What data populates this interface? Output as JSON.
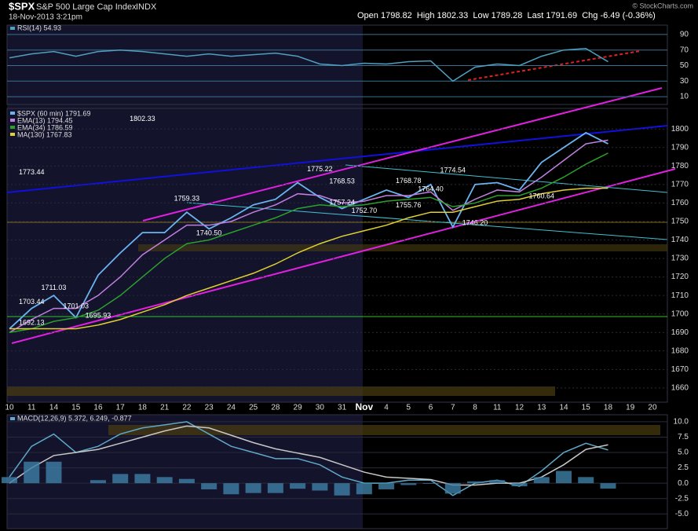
{
  "header": {
    "symbol": "$SPX",
    "name": "S&P 500 Large Cap Index",
    "exchange": "INDX",
    "date": "18-Nov-2013 3:21pm",
    "quote": "Open 1798.82  High 1802.33  Low 1789.28  Last 1791.69  Chg -6.49 (-0.36%)",
    "credit": "© StockCharts.com"
  },
  "chart_data": [
    {
      "type": "line",
      "series": [
        {
          "name": "RSI(14) 54.93",
          "color": "#4f9fc0",
          "values": [
            60,
            65,
            68,
            62,
            68,
            70,
            68,
            65,
            62,
            65,
            62,
            64,
            66,
            62,
            52,
            50,
            53,
            52,
            55,
            56,
            30,
            48,
            52,
            50,
            62,
            70,
            72,
            55,
            null,
            null
          ]
        }
      ],
      "ylim": [
        0,
        100
      ],
      "yticks": [
        10,
        30,
        50,
        70,
        90
      ]
    },
    {
      "type": "line",
      "categories": [
        "10",
        "11",
        "14",
        "15",
        "16",
        "17",
        "18",
        "21",
        "22",
        "23",
        "24",
        "25",
        "28",
        "29",
        "30",
        "31",
        "Nov",
        "4",
        "5",
        "6",
        "7",
        "8",
        "11",
        "12",
        "13",
        "14",
        "15",
        "18",
        "19",
        "20"
      ],
      "series": [
        {
          "name": "$SPX (60 min) 1791.69",
          "color": "#6ab4f0",
          "values": [
            1692,
            1703,
            1710,
            1698,
            1721,
            1733,
            1744,
            1744,
            1755,
            1746,
            1752,
            1759,
            1762,
            1771,
            1763,
            1757,
            1762,
            1767,
            1763,
            1770,
            1747,
            1770,
            1771,
            1767,
            1782,
            1790,
            1798,
            1792,
            null,
            null
          ]
        },
        {
          "name": "EMA(13) 1794.45",
          "color": "#c080e0",
          "values": [
            1690,
            1697,
            1703,
            1703,
            1710,
            1720,
            1732,
            1740,
            1748,
            1748,
            1750,
            1755,
            1759,
            1765,
            1764,
            1760,
            1761,
            1764,
            1764,
            1766,
            1756,
            1762,
            1767,
            1766,
            1774,
            1783,
            1792,
            1794,
            null,
            null
          ]
        },
        {
          "name": "EMA(34) 1786.59",
          "color": "#2ca02c",
          "values": [
            1690,
            1692,
            1696,
            1698,
            1702,
            1710,
            1720,
            1730,
            1738,
            1740,
            1744,
            1748,
            1752,
            1757,
            1759,
            1758,
            1759,
            1761,
            1762,
            1763,
            1758,
            1760,
            1764,
            1764,
            1768,
            1774,
            1781,
            1787,
            null,
            null
          ]
        },
        {
          "name": "MA(130) 1767.83",
          "color": "#e0d030",
          "values": [
            1692,
            1692,
            1692,
            1692,
            1694,
            1697,
            1701,
            1705,
            1710,
            1714,
            1718,
            1722,
            1727,
            1733,
            1738,
            1742,
            1745,
            1748,
            1752,
            1755,
            1755,
            1758,
            1761,
            1762,
            1765,
            1767,
            1768,
            1768,
            null,
            null
          ]
        }
      ],
      "ylim": [
        1654,
        1812
      ],
      "yticks": [
        1660,
        1670,
        1680,
        1690,
        1700,
        1710,
        1720,
        1730,
        1740,
        1750,
        1760,
        1770,
        1780,
        1790,
        1800
      ],
      "annotations": [
        {
          "label": "1775.22",
          "value": 1775.22,
          "category": "30"
        },
        {
          "label": "1768.53",
          "value": 1768.53,
          "category": "31"
        },
        {
          "label": "1759.33",
          "value": 1759.33,
          "category": "22"
        },
        {
          "label": "1740.50",
          "value": 1740.5,
          "category": "23"
        },
        {
          "label": "1711.03",
          "value": 1711.03,
          "category": "14"
        },
        {
          "label": "1703.44",
          "value": 1703.44,
          "category": "11"
        },
        {
          "label": "1701.03",
          "value": 1701.03,
          "category": "15"
        },
        {
          "label": "1692.13",
          "value": 1692.13,
          "category": "11"
        },
        {
          "label": "1695.93",
          "value": 1695.93,
          "category": "16"
        },
        {
          "label": "1757.24",
          "value": 1757.24,
          "category": "31"
        },
        {
          "label": "1752.70",
          "value": 1752.7,
          "category": "Nov"
        },
        {
          "label": "1755.76",
          "value": 1755.76,
          "category": "5"
        },
        {
          "label": "1768.78",
          "value": 1768.78,
          "category": "5"
        },
        {
          "label": "1764.40",
          "value": 1764.4,
          "category": "6"
        },
        {
          "label": "1774.54",
          "value": 1774.54,
          "category": "7"
        },
        {
          "label": "1746.20",
          "value": 1746.2,
          "category": "8"
        },
        {
          "label": "1773.44",
          "value": 1773.44,
          "category": "11"
        },
        {
          "label": "1760.64",
          "value": 1760.64,
          "category": "13"
        },
        {
          "label": "1802.33",
          "value": 1802.33,
          "category": "18"
        }
      ]
    },
    {
      "type": "line",
      "series": [
        {
          "name": "MACD(12,26,9) 5.372, 6.249, -0.877",
          "color": "#5fa8c8",
          "values": [
            1,
            6,
            8,
            5,
            6,
            8,
            9,
            9.5,
            10,
            8,
            6,
            5,
            4,
            4,
            3,
            1,
            0,
            0,
            0.5,
            0.5,
            -2,
            0,
            0.5,
            -0.5,
            2,
            5,
            6.5,
            5.4,
            null,
            null
          ]
        },
        {
          "color": "#c8c8c8",
          "values": [
            0,
            2.5,
            4.5,
            5,
            5.5,
            6.5,
            7.5,
            8.5,
            9.3,
            9,
            7.8,
            6.6,
            5.6,
            4.9,
            4.2,
            3,
            1.8,
            1,
            0.8,
            0.6,
            -0.3,
            -0.3,
            0,
            0,
            1,
            3,
            5.5,
            6.25,
            null,
            null
          ]
        },
        {
          "type": "bar",
          "color": "#3f7fa6",
          "values": [
            1,
            3.5,
            3.5,
            0,
            0.5,
            1.5,
            1.5,
            1,
            0.7,
            -1,
            -1.8,
            -1.6,
            -1.6,
            -0.9,
            -1.2,
            -2,
            -1.8,
            -1,
            -0.3,
            -0.1,
            -1.7,
            0.3,
            0.5,
            -0.5,
            1,
            2,
            1,
            -0.88,
            null,
            null
          ]
        }
      ],
      "ylim": [
        -6.5,
        10.5
      ],
      "yticks": [
        {
          "value": 10,
          "label": "10.0"
        },
        7.5,
        {
          "value": 5,
          "label": "5.0"
        },
        2.5,
        {
          "value": 0,
          "label": "0.0"
        },
        -2.5,
        {
          "value": -5,
          "label": "-5.0"
        }
      ]
    }
  ]
}
